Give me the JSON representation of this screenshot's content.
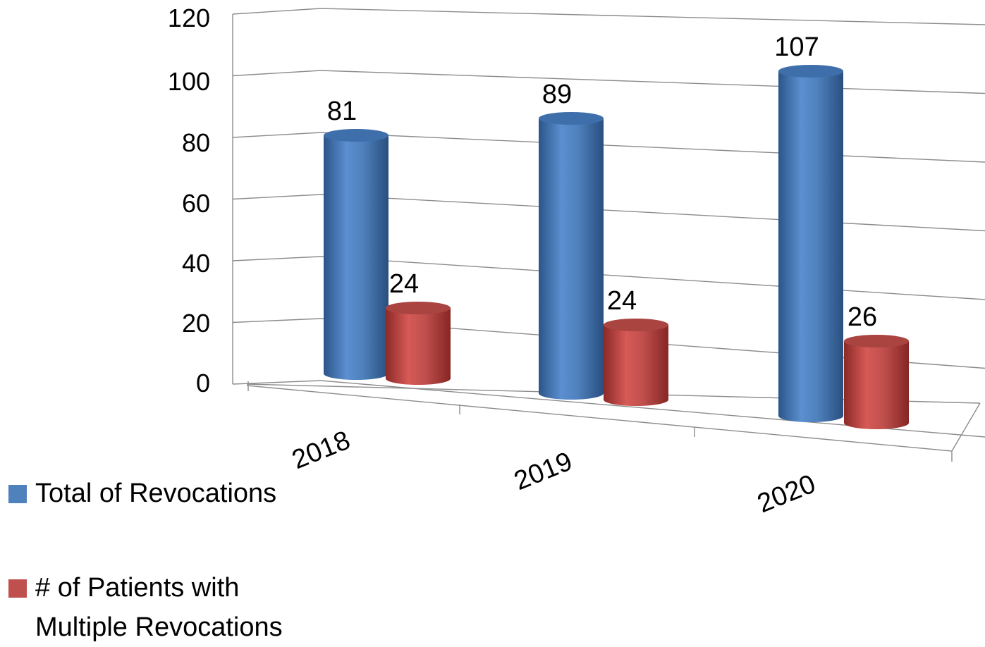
{
  "chart_data": {
    "type": "bar",
    "style": "3d-cylinder",
    "title": "",
    "xlabel": "",
    "ylabel": "",
    "categories": [
      "2018",
      "2019",
      "2020"
    ],
    "ylim": [
      0,
      120
    ],
    "yticks": [
      "0",
      "20",
      "40",
      "60",
      "80",
      "100",
      "120"
    ],
    "grid": true,
    "legend_position": "left",
    "series": [
      {
        "name": "Total of Revocations",
        "values": [
          81,
          89,
          107
        ],
        "color": "#4f81bd"
      },
      {
        "name": "# of Patients with Multiple Revocations",
        "values": [
          24,
          24,
          26
        ],
        "color": "#c0504d"
      }
    ]
  },
  "legend": {
    "items": [
      {
        "lines": [
          "Total of Revocations"
        ],
        "color": "#4f81bd"
      },
      {
        "lines": [
          "# of Patients with",
          "Multiple Revocations"
        ],
        "color": "#c0504d"
      }
    ]
  }
}
